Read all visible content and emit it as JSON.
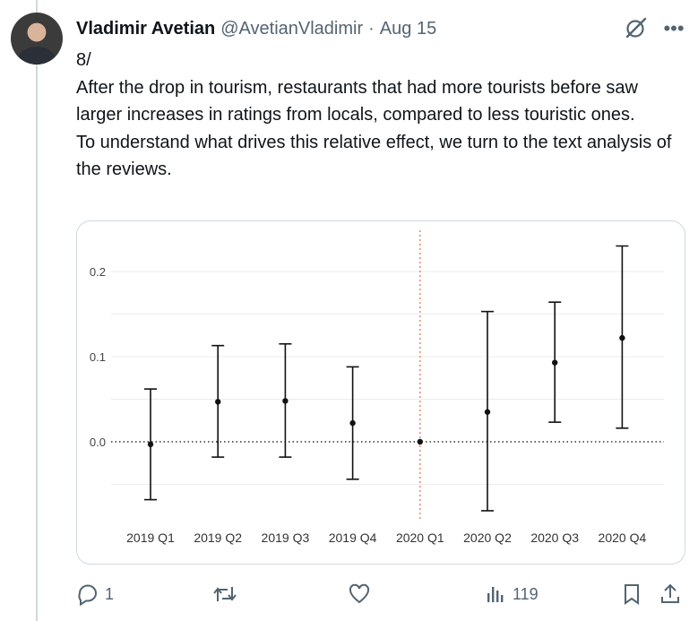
{
  "tweet": {
    "author_name": "Vladimir Avetian",
    "handle": "@AvetianVladimir",
    "separator": "·",
    "date": "Aug 15",
    "text_lines": [
      "8/",
      "After the drop in tourism, restaurants that had more tourists before saw larger increases in ratings from locals,  compared to less touristic ones.",
      "To understand what drives this relative effect, we turn to the text analysis of the reviews."
    ],
    "icons": {
      "grok": "grok-icon",
      "more": "more-options-icon"
    }
  },
  "actions": {
    "reply_count": "1",
    "retweet_count": "",
    "like_count": "",
    "views_count": "119",
    "icons": [
      "reply-icon",
      "retweet-icon",
      "like-icon",
      "views-icon",
      "bookmark-icon",
      "share-icon"
    ]
  },
  "chart_data": {
    "type": "scatter",
    "subtype": "error-bar",
    "categories": [
      "2019 Q1",
      "2019 Q2",
      "2019 Q3",
      "2019 Q4",
      "2020 Q1",
      "2020 Q2",
      "2020 Q3",
      "2020 Q4"
    ],
    "series": [
      {
        "values": [
          -0.003,
          0.047,
          0.048,
          0.022,
          0.0,
          0.035,
          0.093,
          0.122
        ],
        "lower": [
          -0.068,
          -0.018,
          -0.018,
          -0.044,
          0.0,
          -0.081,
          0.023,
          0.016
        ],
        "upper": [
          0.062,
          0.113,
          0.115,
          0.088,
          0.0,
          0.153,
          0.164,
          0.23
        ]
      }
    ],
    "yticks": [
      0.0,
      0.1,
      0.2
    ],
    "ytick_labels": [
      "0.0",
      "0.1",
      "0.2"
    ],
    "ylim": [
      -0.09,
      0.24
    ],
    "reference_hline": 0.0,
    "reference_vline_category": "2020 Q1",
    "grid": true,
    "colors": {
      "points": "#111111",
      "hline": "#333333",
      "vline": "#e8825f",
      "grid": "#ececec"
    }
  }
}
